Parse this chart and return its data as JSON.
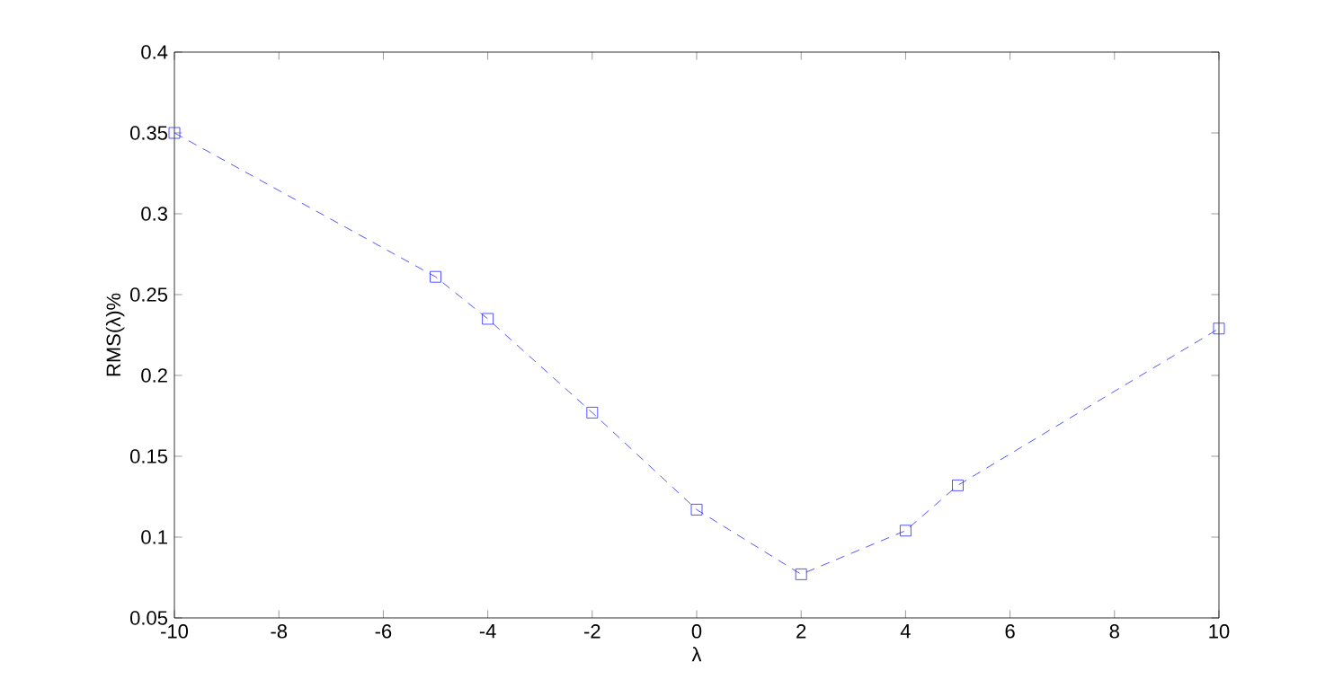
{
  "chart_data": {
    "type": "line",
    "xlabel": "λ",
    "ylabel": "RMS(λ)%",
    "x": [
      -10,
      -5,
      -4,
      -2,
      0,
      2,
      4,
      5,
      10
    ],
    "series": [
      {
        "color": "#2a2aff",
        "values": [
          0.35,
          0.261,
          0.235,
          0.177,
          0.117,
          0.077,
          0.104,
          0.132,
          0.229
        ]
      }
    ],
    "xlim": [
      -10,
      10
    ],
    "ylim": [
      0.05,
      0.4
    ],
    "xticks": [
      -10,
      -8,
      -6,
      -4,
      -2,
      0,
      2,
      4,
      6,
      8,
      10
    ],
    "yticks": [
      0.05,
      0.1,
      0.15,
      0.2,
      0.25,
      0.3,
      0.35,
      0.4
    ],
    "marker": "square",
    "line_style": "dashed",
    "grid": false
  }
}
